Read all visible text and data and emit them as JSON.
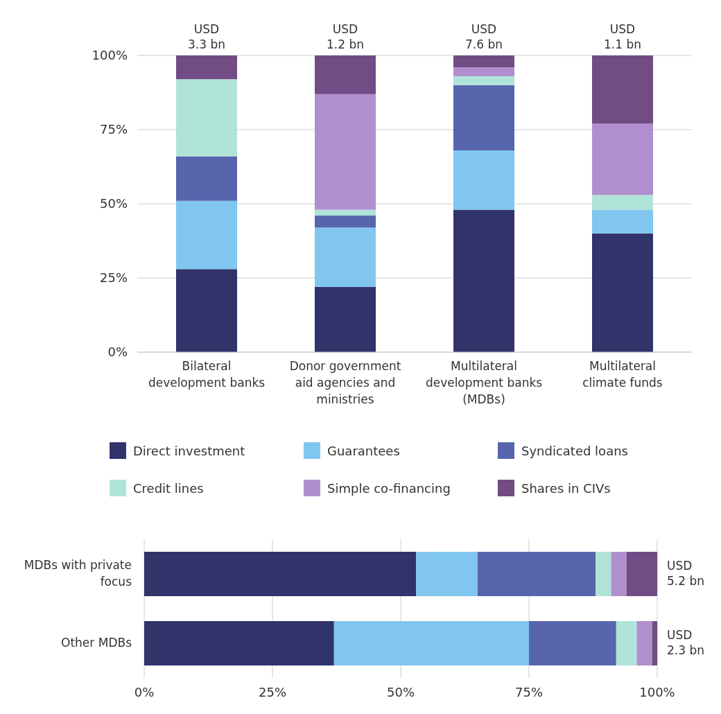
{
  "chart_data": [
    {
      "type": "bar",
      "stacked": true,
      "categories": [
        "Bilateral development banks",
        "Donor government aid agencies and ministries",
        "Multilateral development banks (MDBs)",
        "Multilateral climate funds"
      ],
      "series": [
        {
          "name": "Direct investment",
          "color": "#31336b",
          "values": [
            28,
            22,
            48,
            40
          ]
        },
        {
          "name": "Guarantees",
          "color": "#80c6ef",
          "values": [
            23,
            20,
            20,
            8
          ]
        },
        {
          "name": "Syndicated loans",
          "color": "#5665ac",
          "values": [
            15,
            4,
            22,
            0
          ]
        },
        {
          "name": "Credit lines",
          "color": "#b0e4d8",
          "values": [
            26,
            2,
            3,
            5
          ]
        },
        {
          "name": "Simple co-financing",
          "color": "#b08fcf",
          "values": [
            0,
            39,
            3,
            24
          ]
        },
        {
          "name": "Shares in CIVs",
          "color": "#714c85",
          "values": [
            8,
            13,
            4,
            23
          ]
        }
      ],
      "ylim": [
        0,
        100
      ],
      "yticks": [
        {
          "value": 0,
          "label": "0%"
        },
        {
          "value": 25,
          "label": "25%"
        },
        {
          "value": 50,
          "label": "50%"
        },
        {
          "value": 75,
          "label": "75%"
        },
        {
          "value": 100,
          "label": "100%"
        }
      ],
      "totals": [
        "USD 3.3 bn",
        "USD 1.2 bn",
        "USD 7.6 bn",
        "USD 1.1 bn"
      ],
      "grid": "y",
      "legend": "bottom"
    },
    {
      "type": "bar",
      "stacked": true,
      "orientation": "horizontal",
      "categories": [
        "MDBs with private focus",
        "Other MDBs"
      ],
      "series": [
        {
          "color": "#31336b",
          "values": [
            53,
            37
          ]
        },
        {
          "color": "#80c6ef",
          "values": [
            12,
            38
          ]
        },
        {
          "color": "#5665ac",
          "values": [
            23,
            17
          ]
        },
        {
          "color": "#b0e4d8",
          "values": [
            3,
            4
          ]
        },
        {
          "color": "#b08fcf",
          "values": [
            3,
            3
          ]
        },
        {
          "color": "#714c85",
          "values": [
            6,
            1
          ]
        }
      ],
      "xlim": [
        0,
        100
      ],
      "xticks": [
        {
          "value": 0,
          "label": "0%"
        },
        {
          "value": 25,
          "label": "25%"
        },
        {
          "value": 50,
          "label": "50%"
        },
        {
          "value": 75,
          "label": "75%"
        },
        {
          "value": 100,
          "label": "100%"
        }
      ],
      "totals": [
        "USD 5.2 bn",
        "USD 2.3 bn"
      ],
      "grid": "x"
    }
  ]
}
